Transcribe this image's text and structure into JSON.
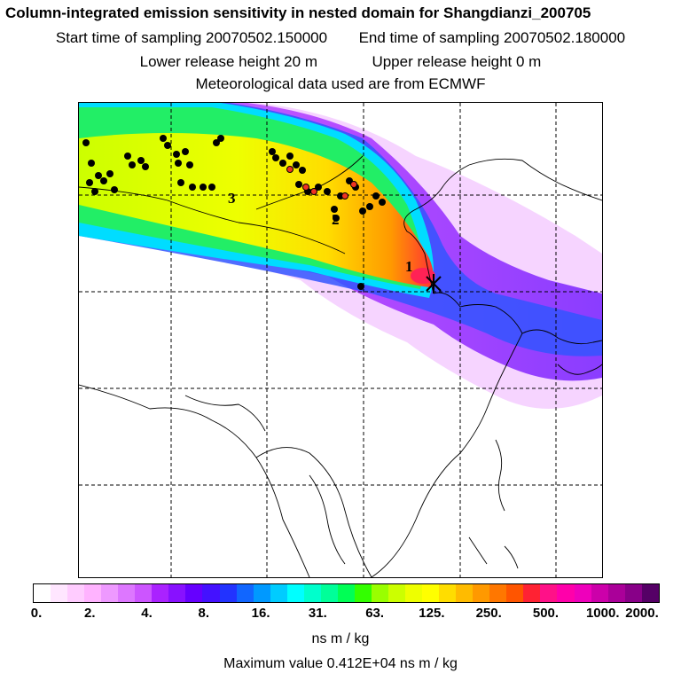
{
  "header": {
    "title": "Column-integrated emission sensitivity in nested domain for Shangdianzi_200705",
    "start_label": "Start time of sampling 20070502.150000",
    "end_label": "End time of sampling 20070502.180000",
    "lower_label": "Lower release height   20 m",
    "upper_label": "Upper release height    0 m",
    "met_label": "Meteorological data used are from ECMWF"
  },
  "map": {
    "labels": [
      "1",
      "2",
      "3"
    ]
  },
  "colorbar": {
    "colors": [
      "#ffffff",
      "#ffe6ff",
      "#ffccff",
      "#ffb3ff",
      "#ee99ff",
      "#dd77ff",
      "#cc55ff",
      "#aa22ff",
      "#8811ff",
      "#6600ff",
      "#4411ff",
      "#2233ff",
      "#1166ff",
      "#0099ff",
      "#00ccff",
      "#00ffff",
      "#00ffcc",
      "#00ff99",
      "#00ff55",
      "#33ff00",
      "#99ff00",
      "#ccff00",
      "#eeff00",
      "#ffff00",
      "#ffdd00",
      "#ffbb00",
      "#ff9900",
      "#ff7700",
      "#ff5500",
      "#ff2233",
      "#ff1188",
      "#ff00aa",
      "#ee00bb",
      "#cc00aa",
      "#aa0099",
      "#880088",
      "#550066"
    ],
    "tick_labels": [
      "0.",
      "2.",
      "4.",
      "8.",
      "16.",
      "31.",
      "63.",
      "125.",
      "250.",
      "500.",
      "1000.",
      "2000."
    ],
    "unit": "ns m / kg"
  },
  "footer": {
    "max_value": "Maximum value  0.412E+04 ns m / kg"
  }
}
